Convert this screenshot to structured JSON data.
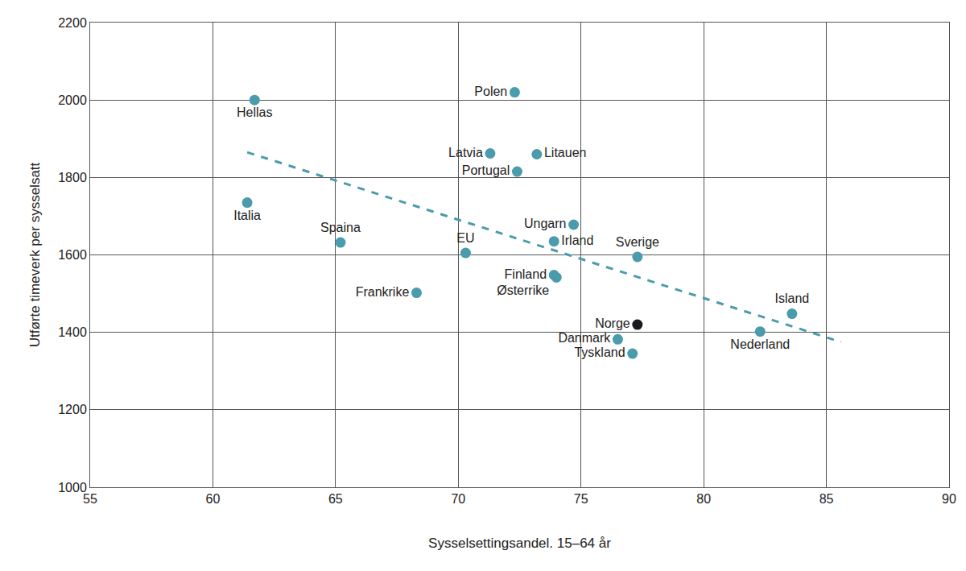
{
  "chart_data": {
    "type": "scatter",
    "x_label": "Sysselsettingsandel. 15–64 år",
    "y_label": "Utførte timeverk per sysselsatt",
    "points": [
      {
        "label": "Hellas",
        "x": 61.7,
        "y": 2000
      },
      {
        "label": "Italia",
        "x": 61.4,
        "y": 1735
      },
      {
        "label": "Spaina",
        "x": 65.2,
        "y": 1632
      },
      {
        "label": "Frankrike",
        "x": 68.3,
        "y": 1502
      },
      {
        "label": "EU",
        "x": 70.3,
        "y": 1605
      },
      {
        "label": "Latvia",
        "x": 71.3,
        "y": 1862
      },
      {
        "label": "Polen",
        "x": 72.3,
        "y": 2020
      },
      {
        "label": "Portugal",
        "x": 72.4,
        "y": 1815
      },
      {
        "label": "Litauen",
        "x": 73.2,
        "y": 1860
      },
      {
        "label": "Ungarn",
        "x": 74.7,
        "y": 1678
      },
      {
        "label": "Irland",
        "x": 73.9,
        "y": 1635
      },
      {
        "label": "Finland",
        "x": 73.9,
        "y": 1548
      },
      {
        "label": "Østerrike",
        "x": 74.0,
        "y": 1542
      },
      {
        "label": "Sverige",
        "x": 77.3,
        "y": 1595
      },
      {
        "label": "Norge",
        "x": 77.3,
        "y": 1420
      },
      {
        "label": "Danmark",
        "x": 76.5,
        "y": 1382
      },
      {
        "label": "Tyskland",
        "x": 77.1,
        "y": 1345
      },
      {
        "label": "Island",
        "x": 83.6,
        "y": 1448
      },
      {
        "label": "Nederland",
        "x": 82.3,
        "y": 1402
      }
    ],
    "colors": [
      "#4a9bab",
      "#4a9bab",
      "#4a9bab",
      "#4a9bab",
      "#4a9bab",
      "#4a9bab",
      "#4a9bab",
      "#4a9bab",
      "#4a9bab",
      "#4a9bab",
      "#4a9bab",
      "#4a9bab",
      "#4a9bab",
      "#4a9bab",
      "#1a1a1a",
      "#4a9bab",
      "#4a9bab",
      "#4a9bab",
      "#4a9bab"
    ],
    "marker": "circle",
    "trend": {
      "x": [
        61.4,
        85.6
      ],
      "y": [
        1865,
        1375
      ],
      "color": "#4a9bab",
      "line_style": "dash"
    },
    "xlim": [
      55,
      90
    ],
    "xticks": [
      55,
      60,
      65,
      70,
      75,
      80,
      85,
      90
    ],
    "ylim": [
      1000,
      2200
    ],
    "yticks": [
      1000,
      1200,
      1400,
      1600,
      1800,
      2000,
      2200
    ],
    "grid": true
  }
}
